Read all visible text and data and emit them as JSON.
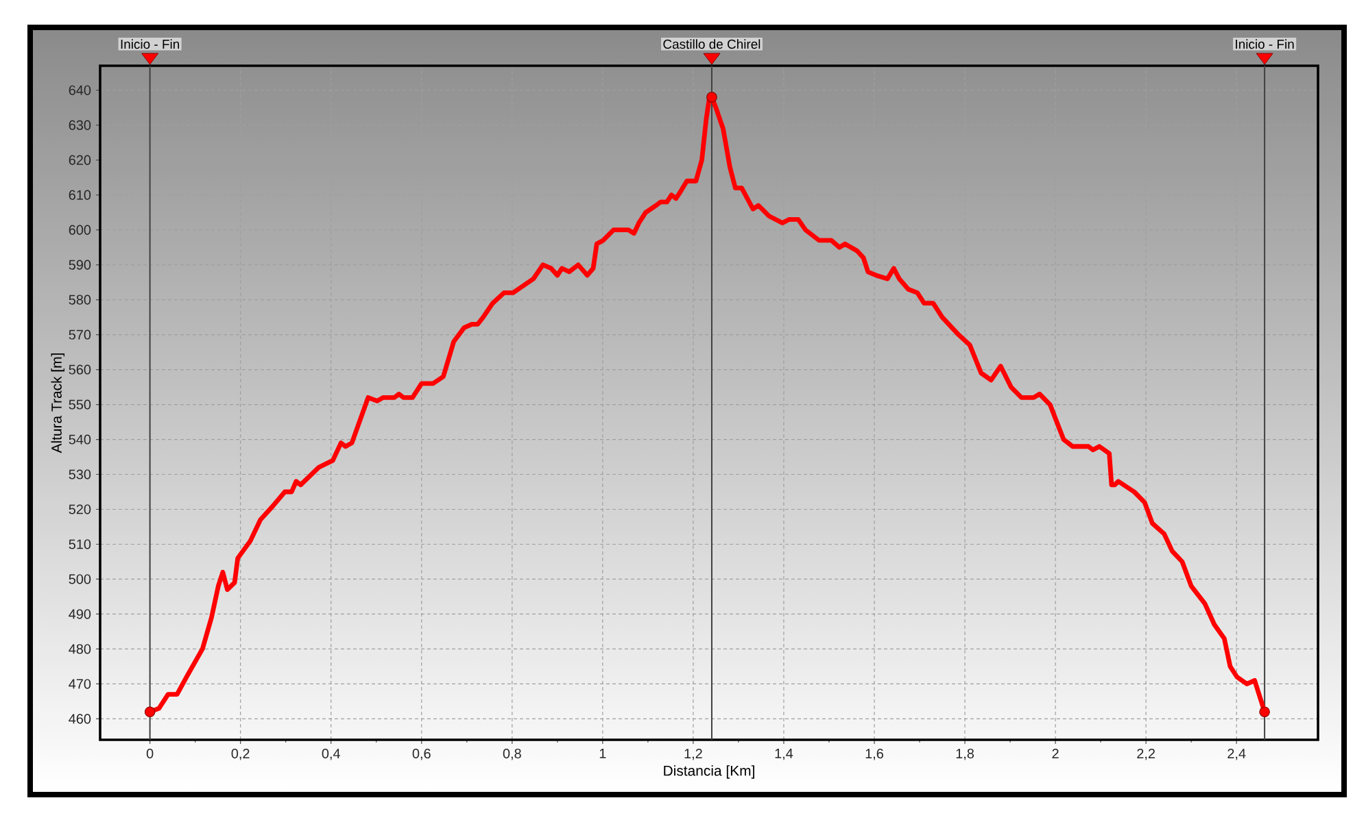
{
  "chart_data": {
    "type": "line",
    "xlabel": "Distancia [Km]",
    "ylabel": "Altura Track [m]",
    "series": [
      {
        "type": "line",
        "color": "#ff0000",
        "line_style": "solid",
        "marker": "none",
        "x": [
          0,
          0.02,
          0.04,
          0.06,
          0.081,
          0.116,
          0.136,
          0.151,
          0.161,
          0.171,
          0.187,
          0.194,
          0.222,
          0.244,
          0.272,
          0.298,
          0.313,
          0.323,
          0.333,
          0.373,
          0.404,
          0.422,
          0.432,
          0.446,
          0.482,
          0.502,
          0.515,
          0.54,
          0.55,
          0.56,
          0.58,
          0.6,
          0.625,
          0.648,
          0.671,
          0.694,
          0.711,
          0.724,
          0.736,
          0.757,
          0.782,
          0.802,
          0.847,
          0.868,
          0.886,
          0.9,
          0.91,
          0.926,
          0.946,
          0.966,
          0.979,
          0.987,
          1.001,
          1.024,
          1.057,
          1.069,
          1.08,
          1.095,
          1.118,
          1.128,
          1.142,
          1.152,
          1.162,
          1.172,
          1.186,
          1.206,
          1.219,
          1.229,
          1.236,
          1.241,
          1.25,
          1.266,
          1.281,
          1.293,
          1.307,
          1.332,
          1.344,
          1.367,
          1.397,
          1.412,
          1.432,
          1.448,
          1.478,
          1.505,
          1.523,
          1.535,
          1.562,
          1.576,
          1.586,
          1.604,
          1.629,
          1.643,
          1.655,
          1.675,
          1.695,
          1.71,
          1.73,
          1.75,
          1.786,
          1.811,
          1.836,
          1.858,
          1.879,
          1.902,
          1.925,
          1.952,
          1.965,
          1.988,
          2.018,
          2.038,
          2.073,
          2.083,
          2.097,
          2.119,
          2.124,
          2.131,
          2.139,
          2.174,
          2.197,
          2.214,
          2.24,
          2.258,
          2.28,
          2.3,
          2.33,
          2.351,
          2.373,
          2.386,
          2.401,
          2.423,
          2.44,
          2.462
        ],
        "values": [
          462,
          463,
          467,
          467,
          472,
          480,
          489,
          498,
          502,
          497,
          499,
          506,
          511,
          517,
          521,
          525,
          525,
          528,
          527,
          532,
          534,
          539,
          538,
          539,
          552,
          551,
          552,
          552,
          553,
          552,
          552,
          556,
          556,
          558,
          568,
          572,
          573,
          573,
          575,
          579,
          582,
          582,
          586,
          590,
          589,
          587,
          589,
          588,
          590,
          587,
          589,
          596,
          597,
          600,
          600,
          599,
          602,
          605,
          607,
          608,
          608,
          610,
          609,
          611,
          614,
          614,
          620,
          632,
          638,
          638,
          635,
          629,
          618,
          612,
          612,
          606,
          607,
          604,
          602,
          603,
          603,
          600,
          597,
          597,
          595,
          596,
          594,
          592,
          588,
          587,
          586,
          589,
          586,
          583,
          582,
          579,
          579,
          575,
          570,
          567,
          559,
          557,
          561,
          555,
          552,
          552,
          553,
          550,
          540,
          538,
          538,
          537,
          538,
          536,
          527,
          527,
          528,
          525,
          522,
          516,
          513,
          508,
          505,
          498,
          493,
          487,
          483,
          475,
          472,
          470,
          471,
          462
        ]
      },
      {
        "type": "scatter",
        "color": "#ff0000",
        "marker": "circle",
        "x": [
          0,
          1.241,
          2.462
        ],
        "values": [
          462,
          638,
          462
        ]
      }
    ],
    "xlim": [
      -0.11,
      2.58
    ],
    "ylim": [
      454,
      647
    ],
    "xticks": [
      0,
      {
        "value": 0.2,
        "label": "0,2"
      },
      {
        "value": 0.4,
        "label": "0,4"
      },
      {
        "value": 0.6,
        "label": "0,6"
      },
      {
        "value": 0.8,
        "label": "0,8"
      },
      1,
      {
        "value": 1.2,
        "label": "1,2"
      },
      {
        "value": 1.4,
        "label": "1,4"
      },
      {
        "value": 1.6,
        "label": "1,6"
      },
      {
        "value": 1.8,
        "label": "1,8"
      },
      2,
      {
        "value": 2.2,
        "label": "2,2"
      },
      {
        "value": 2.4,
        "label": "2,4"
      }
    ],
    "yticks": [
      460,
      470,
      480,
      490,
      500,
      510,
      520,
      530,
      540,
      550,
      560,
      570,
      580,
      590,
      600,
      610,
      620,
      630,
      640
    ],
    "grid": true,
    "ref_lines": [
      {
        "axis": "x",
        "value": 0,
        "label": "Inicio - Fin",
        "color": "#404040"
      },
      {
        "axis": "x",
        "value": 1.241,
        "label": "Castillo de Chirel",
        "color": "#404040"
      },
      {
        "axis": "x",
        "value": 2.462,
        "label": "Inicio - Fin",
        "color": "#404040"
      }
    ]
  }
}
